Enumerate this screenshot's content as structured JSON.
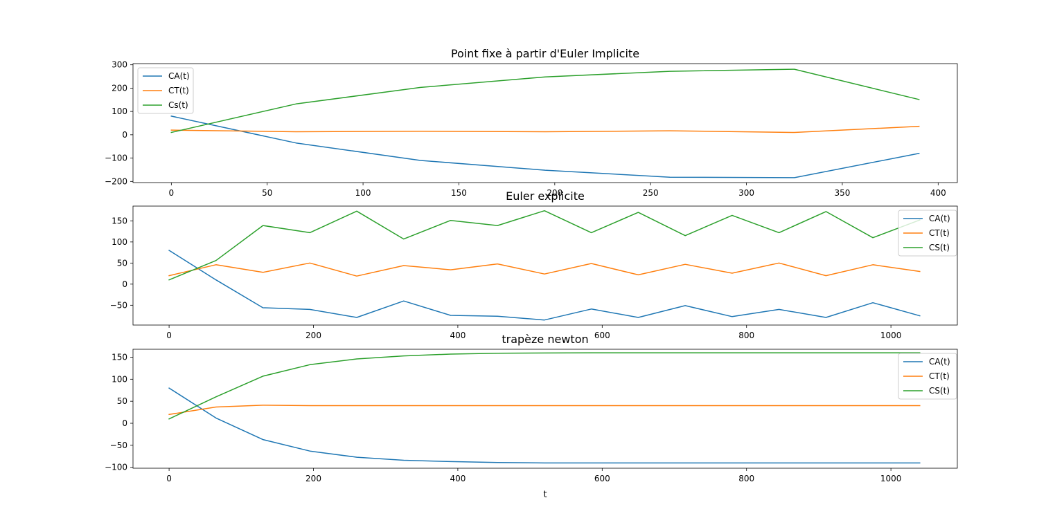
{
  "chart_data": [
    {
      "type": "line",
      "title": "Point fixe à partir d'Euler Implicite",
      "xlabel": "",
      "ylabel": "",
      "xlim": [
        -20,
        410
      ],
      "ylim": [
        -205,
        305
      ],
      "xticks": [
        0,
        50,
        100,
        150,
        200,
        250,
        300,
        350,
        400
      ],
      "yticks": [
        -200,
        -100,
        0,
        100,
        200,
        300
      ],
      "legend_position": "upper-left",
      "x": [
        0,
        65,
        130,
        195,
        260,
        325,
        390
      ],
      "series": [
        {
          "name": "CA(t)",
          "color": "#1f77b4",
          "values": [
            80,
            -35,
            -110,
            -152,
            -182,
            -184,
            -80
          ]
        },
        {
          "name": "CT(t)",
          "color": "#ff7f0e",
          "values": [
            20,
            13,
            15,
            13,
            17,
            10,
            36
          ]
        },
        {
          "name": "Cs(t)",
          "color": "#2ca02c",
          "values": [
            10,
            132,
            203,
            248,
            272,
            281,
            151
          ]
        }
      ]
    },
    {
      "type": "line",
      "title": "Euler explicite",
      "xlabel": "",
      "ylabel": "",
      "xlim": [
        -50,
        1092
      ],
      "ylim": [
        -97,
        185
      ],
      "xticks": [
        0,
        200,
        400,
        600,
        800,
        1000
      ],
      "yticks": [
        -50,
        0,
        50,
        100,
        150
      ],
      "legend_position": "upper-right",
      "x": [
        0,
        65,
        130,
        195,
        260,
        325,
        390,
        455,
        520,
        585,
        650,
        715,
        780,
        845,
        910,
        975,
        1040
      ],
      "series": [
        {
          "name": "CA(t)",
          "color": "#1f77b4",
          "values": [
            80,
            10,
            -56,
            -60,
            -79,
            -40,
            -74,
            -76,
            -85,
            -59,
            -79,
            -51,
            -77,
            -60,
            -79,
            -44,
            -75
          ]
        },
        {
          "name": "CT(t)",
          "color": "#ff7f0e",
          "values": [
            20,
            46,
            28,
            50,
            19,
            44,
            34,
            48,
            24,
            49,
            22,
            47,
            26,
            50,
            20,
            46,
            30
          ]
        },
        {
          "name": "CS(t)",
          "color": "#2ca02c",
          "values": [
            10,
            56,
            139,
            122,
            173,
            107,
            151,
            139,
            174,
            122,
            170,
            115,
            163,
            122,
            172,
            110,
            152
          ]
        }
      ]
    },
    {
      "type": "line",
      "title": "trapèze newton",
      "xlabel": "t",
      "ylabel": "",
      "xlim": [
        -50,
        1092
      ],
      "ylim": [
        -102,
        168
      ],
      "xticks": [
        0,
        200,
        400,
        600,
        800,
        1000
      ],
      "yticks": [
        -100,
        -50,
        0,
        50,
        100,
        150
      ],
      "legend_position": "upper-right",
      "x": [
        0,
        65,
        130,
        195,
        260,
        325,
        390,
        455,
        520,
        585,
        650,
        715,
        780,
        845,
        910,
        975,
        1040
      ],
      "series": [
        {
          "name": "CA(t)",
          "color": "#1f77b4",
          "values": [
            80,
            12,
            -37,
            -63,
            -77,
            -84,
            -87,
            -89,
            -90,
            -90,
            -90,
            -90,
            -90,
            -90,
            -90,
            -90,
            -90
          ]
        },
        {
          "name": "CT(t)",
          "color": "#ff7f0e",
          "values": [
            20,
            37,
            41,
            40,
            40,
            40,
            40,
            40,
            40,
            40,
            40,
            40,
            40,
            40,
            40,
            40,
            40
          ]
        },
        {
          "name": "CS(t)",
          "color": "#2ca02c",
          "values": [
            10,
            60,
            107,
            133,
            146,
            153,
            157,
            159,
            159.5,
            160,
            160,
            160,
            160,
            160,
            160,
            160,
            160
          ]
        }
      ]
    }
  ]
}
